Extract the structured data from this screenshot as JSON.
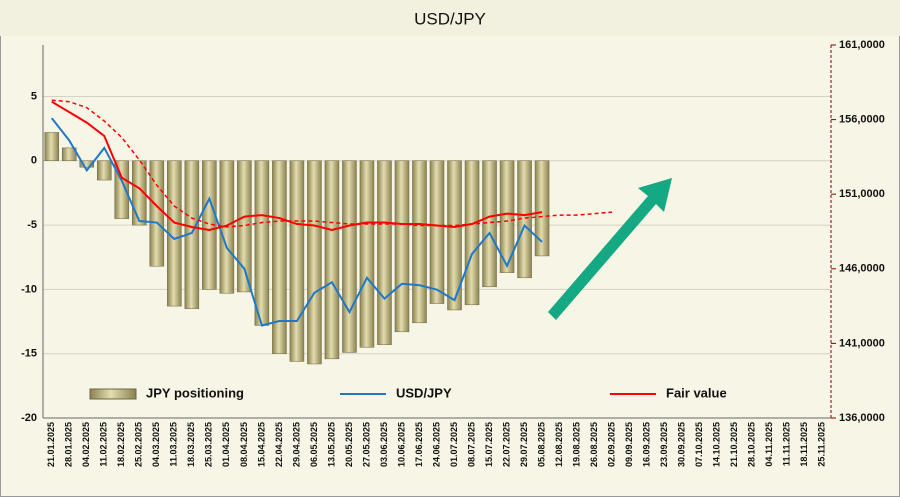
{
  "chart_data": {
    "type": "bar_line",
    "title": "USD/JPY",
    "categories": [
      "21.01.2025",
      "28.01.2025",
      "04.02.2025",
      "11.02.2025",
      "18.02.2025",
      "25.02.2025",
      "04.03.2025",
      "11.03.2025",
      "18.03.2025",
      "25.03.2025",
      "01.04.2025",
      "08.04.2025",
      "15.04.2025",
      "22.04.2025",
      "29.04.2025",
      "06.05.2025",
      "13.05.2025",
      "20.05.2025",
      "27.05.2025",
      "03.06.2025",
      "10.06.2025",
      "17.06.2025",
      "24.06.2025",
      "01.07.2025",
      "08.07.2025",
      "15.07.2025",
      "22.07.2025",
      "29.07.2025",
      "05.08.2025",
      "12.08.2025",
      "19.08.2025",
      "26.08.2025",
      "02.09.2025",
      "09.09.2025",
      "16.09.2025",
      "23.09.2025",
      "30.09.2025",
      "07.10.2025",
      "14.10.2025",
      "21.10.2025",
      "28.10.2025",
      "04.11.2025",
      "11.11.2025",
      "18.11.2025",
      "25.11.2025"
    ],
    "series": [
      {
        "name": "JPY positioning",
        "type": "bar",
        "axis": "y",
        "color": "#c9c08c",
        "values": [
          2.2,
          1.0,
          -0.5,
          -1.5,
          -4.5,
          -5,
          -8.2,
          -11.3,
          -11.5,
          -10,
          -10.3,
          -10.2,
          -12.8,
          -15,
          -15.6,
          -15.8,
          -15.4,
          -14.9,
          -14.5,
          -14.3,
          -13.3,
          -12.6,
          -11.1,
          -11.6,
          -11.2,
          -9.8,
          -8.7,
          -9.1,
          -7.4,
          null,
          null,
          null,
          null,
          null,
          null,
          null,
          null,
          null,
          null,
          null,
          null,
          null,
          null,
          null,
          null
        ]
      },
      {
        "name": "USD/JPY",
        "type": "line",
        "axis": "y2",
        "color": "#1f78c8",
        "values": [
          156.1,
          154.6,
          152.6,
          154.1,
          151.9,
          149.2,
          149.1,
          148.0,
          148.4,
          150.7,
          147.4,
          146.0,
          142.2,
          142.5,
          142.5,
          144.4,
          145.1,
          143.1,
          145.4,
          144.0,
          145.0,
          144.9,
          144.6,
          143.9,
          147.0,
          148.4,
          146.2,
          148.9,
          147.8,
          null,
          null,
          null,
          null,
          null,
          null,
          null,
          null,
          null,
          null,
          null,
          null,
          null,
          null,
          null,
          null
        ]
      },
      {
        "name": "Fair value",
        "type": "line",
        "axis": "y2",
        "color": "#ff0000",
        "values": [
          157.2,
          156.5,
          155.8,
          154.9,
          152.1,
          151.4,
          150.2,
          149.1,
          148.8,
          148.6,
          148.9,
          149.5,
          149.6,
          149.4,
          149.0,
          148.9,
          148.6,
          148.9,
          149.1,
          149.1,
          149.0,
          149.0,
          148.9,
          148.8,
          149.0,
          149.5,
          149.7,
          149.6,
          149.8,
          null,
          null,
          null,
          null,
          null,
          null,
          null,
          null,
          null,
          null,
          null,
          null,
          null,
          null,
          null,
          null
        ]
      },
      {
        "type": "line",
        "axis": "y2",
        "color": "#ff0000",
        "dashed": true,
        "values": [
          157.3,
          157.2,
          156.8,
          155.9,
          154.8,
          153.3,
          151.6,
          150.2,
          149.4,
          149.0,
          148.8,
          148.9,
          149.1,
          149.2,
          149.2,
          149.2,
          149.1,
          149.0,
          149.0,
          149.0,
          149.0,
          148.9,
          148.9,
          148.9,
          149.0,
          149.1,
          149.2,
          149.4,
          149.5,
          149.6,
          149.6,
          149.7,
          149.8,
          null,
          null,
          null,
          null,
          null,
          null,
          null,
          null,
          null,
          null,
          null,
          null
        ]
      }
    ],
    "ylim": [
      -20,
      9
    ],
    "yticks": [
      -20,
      -15,
      -10,
      -5,
      0,
      5
    ],
    "y2lim": [
      136,
      161
    ],
    "y2ticks": [
      {
        "value": 136,
        "label": "136,0000"
      },
      {
        "value": 141,
        "label": "141,0000"
      },
      {
        "value": 146,
        "label": "146,0000"
      },
      {
        "value": 151,
        "label": "151,0000"
      },
      {
        "value": 156,
        "label": "156,0000"
      },
      {
        "value": 161,
        "label": "161,0000"
      }
    ],
    "grid": true,
    "legend": "bottom"
  }
}
